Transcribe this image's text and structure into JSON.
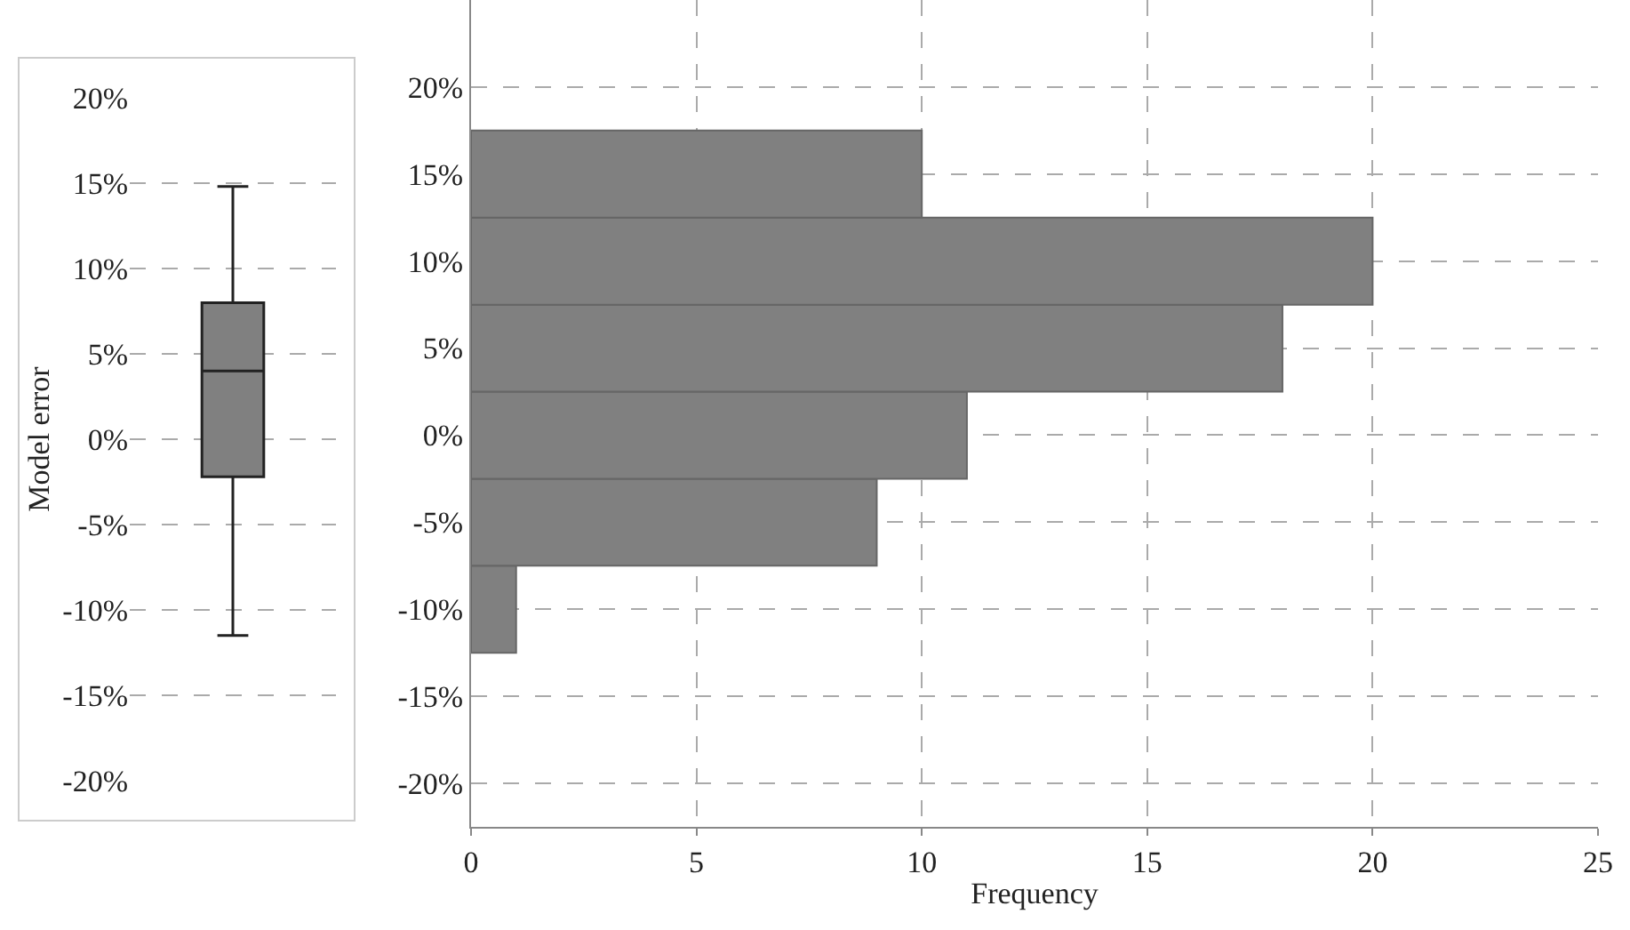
{
  "chart_data": [
    {
      "type": "box",
      "ylabel": "Model error",
      "categories": [
        null
      ],
      "boxes": [
        {
          "low": -11.5,
          "q1": -2.2,
          "median": 4,
          "q3": 8,
          "high": 14.8
        }
      ],
      "color": "#808080",
      "ylim": [
        -20,
        20
      ],
      "yticks": [
        {
          "value": -20,
          "label": "-20%"
        },
        {
          "value": -15,
          "label": "-15%"
        },
        {
          "value": -10,
          "label": "-10%"
        },
        {
          "value": -5,
          "label": "-5%"
        },
        {
          "value": 0,
          "label": "0%"
        },
        {
          "value": 5,
          "label": "5%"
        },
        {
          "value": 10,
          "label": "10%"
        },
        {
          "value": 15,
          "label": "15%"
        },
        {
          "value": 20,
          "label": "20%"
        }
      ],
      "grid": "y",
      "tick_labels": "y"
    },
    {
      "type": "histogram",
      "orientation": "horizontal",
      "xlabel": "Frequency",
      "bins": [
        -12.5,
        -7.5,
        -2.5,
        2.5,
        7.5,
        12.5,
        17.5
      ],
      "values": [
        1,
        9,
        11,
        18,
        20,
        10
      ],
      "color": "#808080",
      "xlim": [
        0,
        25
      ],
      "xticks": [
        0,
        5,
        10,
        15,
        20,
        25
      ],
      "ylim": [
        -22.5,
        25
      ],
      "yticks": [
        {
          "value": -20,
          "label": "-20%"
        },
        {
          "value": -15,
          "label": "-15%"
        },
        {
          "value": -10,
          "label": "-10%"
        },
        {
          "value": -5,
          "label": "-5%"
        },
        {
          "value": 0,
          "label": "0%"
        },
        {
          "value": 5,
          "label": "5%"
        },
        {
          "value": 10,
          "label": "10%"
        },
        {
          "value": 15,
          "label": "15%"
        },
        {
          "value": 20,
          "label": "20%"
        }
      ],
      "grid": true
    }
  ]
}
